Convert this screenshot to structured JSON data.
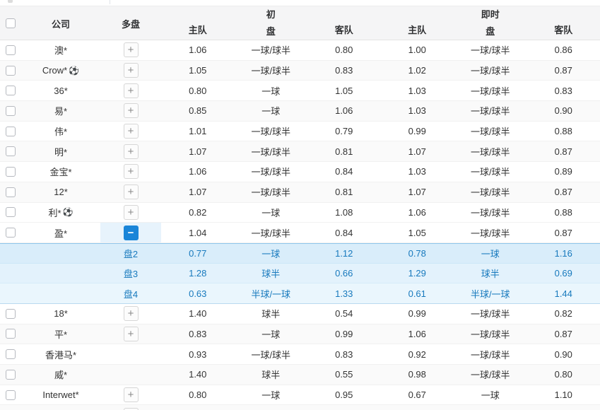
{
  "table": {
    "header": {
      "company": "公司",
      "multi": "多盘",
      "initial_group": "初",
      "live_group": "即时",
      "handicap": "盘",
      "home": "主队",
      "away": "客队"
    },
    "rows": [
      {
        "type": "company",
        "company": "澳*",
        "ball": false,
        "expander": "plus",
        "init_home": "1.06",
        "init_handicap": "一球/球半",
        "init_away": "0.80",
        "live_home": "1.00",
        "live_handicap": "一球/球半",
        "live_away": "0.86"
      },
      {
        "type": "company",
        "company": "Crow*",
        "ball": true,
        "expander": "plus",
        "init_home": "1.05",
        "init_handicap": "一球/球半",
        "init_away": "0.83",
        "live_home": "1.02",
        "live_handicap": "一球/球半",
        "live_away": "0.87"
      },
      {
        "type": "company",
        "company": "36*",
        "ball": false,
        "expander": "plus",
        "init_home": "0.80",
        "init_handicap": "一球",
        "init_away": "1.05",
        "live_home": "1.03",
        "live_handicap": "一球/球半",
        "live_away": "0.83"
      },
      {
        "type": "company",
        "company": "易*",
        "ball": false,
        "expander": "plus",
        "init_home": "0.85",
        "init_handicap": "一球",
        "init_away": "1.06",
        "live_home": "1.03",
        "live_handicap": "一球/球半",
        "live_away": "0.90"
      },
      {
        "type": "company",
        "company": "伟*",
        "ball": false,
        "expander": "plus",
        "init_home": "1.01",
        "init_handicap": "一球/球半",
        "init_away": "0.79",
        "live_home": "0.99",
        "live_handicap": "一球/球半",
        "live_away": "0.88"
      },
      {
        "type": "company",
        "company": "明*",
        "ball": false,
        "expander": "plus",
        "init_home": "1.07",
        "init_handicap": "一球/球半",
        "init_away": "0.81",
        "live_home": "1.07",
        "live_handicap": "一球/球半",
        "live_away": "0.87"
      },
      {
        "type": "company",
        "company": "金宝*",
        "ball": false,
        "expander": "plus",
        "init_home": "1.06",
        "init_handicap": "一球/球半",
        "init_away": "0.84",
        "live_home": "1.03",
        "live_handicap": "一球/球半",
        "live_away": "0.89"
      },
      {
        "type": "company",
        "company": "12*",
        "ball": false,
        "expander": "plus",
        "init_home": "1.07",
        "init_handicap": "一球/球半",
        "init_away": "0.81",
        "live_home": "1.07",
        "live_handicap": "一球/球半",
        "live_away": "0.87"
      },
      {
        "type": "company",
        "company": "利*",
        "ball": true,
        "expander": "plus",
        "init_home": "0.82",
        "init_handicap": "一球",
        "init_away": "1.08",
        "live_home": "1.06",
        "live_handicap": "一球/球半",
        "live_away": "0.88"
      },
      {
        "type": "company",
        "company": "盈*",
        "ball": false,
        "expander": "minus",
        "expanded": true,
        "init_home": "1.04",
        "init_handicap": "一球/球半",
        "init_away": "0.84",
        "live_home": "1.05",
        "live_handicap": "一球/球半",
        "live_away": "0.87"
      },
      {
        "type": "sub",
        "label": "盘2",
        "init_home": "0.77",
        "init_handicap": "一球",
        "init_away": "1.12",
        "live_home": "0.78",
        "live_handicap": "一球",
        "live_away": "1.16"
      },
      {
        "type": "sub",
        "label": "盘3",
        "init_home": "1.28",
        "init_handicap": "球半",
        "init_away": "0.66",
        "live_home": "1.29",
        "live_handicap": "球半",
        "live_away": "0.69"
      },
      {
        "type": "sub",
        "label": "盘4",
        "init_home": "0.63",
        "init_handicap": "半球/一球",
        "init_away": "1.33",
        "live_home": "0.61",
        "live_handicap": "半球/一球",
        "live_away": "1.44"
      },
      {
        "type": "company",
        "company": "18*",
        "ball": false,
        "expander": "plus",
        "init_home": "1.40",
        "init_handicap": "球半",
        "init_away": "0.54",
        "live_home": "0.99",
        "live_handicap": "一球/球半",
        "live_away": "0.82"
      },
      {
        "type": "company",
        "company": "平*",
        "ball": false,
        "expander": "plus",
        "init_home": "0.83",
        "init_handicap": "一球",
        "init_away": "0.99",
        "live_home": "1.06",
        "live_handicap": "一球/球半",
        "live_away": "0.87"
      },
      {
        "type": "company",
        "company": "香港马*",
        "ball": false,
        "expander": "none",
        "init_home": "0.93",
        "init_handicap": "一球/球半",
        "init_away": "0.83",
        "live_home": "0.92",
        "live_handicap": "一球/球半",
        "live_away": "0.90"
      },
      {
        "type": "company",
        "company": "威*",
        "ball": false,
        "expander": "none",
        "init_home": "1.40",
        "init_handicap": "球半",
        "init_away": "0.55",
        "live_home": "0.98",
        "live_handicap": "一球/球半",
        "live_away": "0.80"
      },
      {
        "type": "company",
        "company": "Interwet*",
        "ball": false,
        "expander": "plus",
        "init_home": "0.80",
        "init_handicap": "一球",
        "init_away": "0.95",
        "live_home": "0.67",
        "live_handicap": "一球",
        "live_away": "1.10"
      },
      {
        "type": "partial",
        "expander": "plus"
      }
    ]
  },
  "icons": {
    "plus": "+",
    "minus": "−",
    "soccer_ball": "⚽"
  },
  "colors": {
    "accent_blue": "#1a85d8",
    "sub_row_text": "#1779bd",
    "expanded_cell_bg": "#e7f3fc",
    "sub_row_bg_top": "#d9edfa",
    "sub_row_bg_bottom": "#eaf6fd",
    "header_bg": "#f5f5f6",
    "zebra_bg": "#fafafa"
  }
}
